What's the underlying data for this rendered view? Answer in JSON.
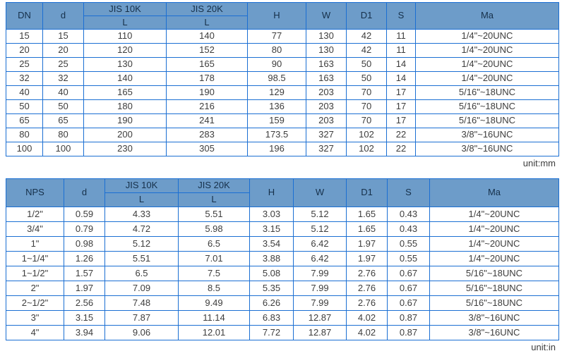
{
  "colors": {
    "header_bg": "#6d9cc9",
    "border_blue": "#1b6fd3",
    "header_text": "#16304a",
    "body_text": "#3d3d3d"
  },
  "units": {
    "mm_label": "unit:mm",
    "in_label": "unit:in"
  },
  "table_mm": {
    "headers": {
      "col_size": "DN",
      "col_d": "d",
      "col_jis10k": "JIS 10K",
      "col_jis20k": "JIS 20K",
      "col_l10": "L",
      "col_l20": "L",
      "col_h": "H",
      "col_w": "W",
      "col_d1": "D1",
      "col_s": "S",
      "col_ma": "Ma"
    },
    "rows": [
      [
        "15",
        "15",
        "110",
        "140",
        "77",
        "130",
        "42",
        "11",
        "1/4\"~20UNC"
      ],
      [
        "20",
        "20",
        "120",
        "152",
        "80",
        "130",
        "42",
        "11",
        "1/4\"~20UNC"
      ],
      [
        "25",
        "25",
        "130",
        "165",
        "90",
        "163",
        "50",
        "14",
        "1/4\"~20UNC"
      ],
      [
        "32",
        "32",
        "140",
        "178",
        "98.5",
        "163",
        "50",
        "14",
        "1/4\"~20UNC"
      ],
      [
        "40",
        "40",
        "165",
        "190",
        "129",
        "203",
        "70",
        "17",
        "5/16\"~18UNC"
      ],
      [
        "50",
        "50",
        "180",
        "216",
        "136",
        "203",
        "70",
        "17",
        "5/16\"~18UNC"
      ],
      [
        "65",
        "65",
        "190",
        "241",
        "159",
        "203",
        "70",
        "17",
        "5/16\"~18UNC"
      ],
      [
        "80",
        "80",
        "200",
        "283",
        "173.5",
        "327",
        "102",
        "22",
        "3/8\"~16UNC"
      ],
      [
        "100",
        "100",
        "230",
        "305",
        "196",
        "327",
        "102",
        "22",
        "3/8\"~16UNC"
      ]
    ]
  },
  "table_in": {
    "headers": {
      "col_size": "NPS",
      "col_d": "d",
      "col_jis10k": "JIS 10K",
      "col_jis20k": "JIS 20K",
      "col_l10": "L",
      "col_l20": "L",
      "col_h": "H",
      "col_w": "W",
      "col_d1": "D1",
      "col_s": "S",
      "col_ma": "Ma"
    },
    "rows": [
      [
        "1/2\"",
        "0.59",
        "4.33",
        "5.51",
        "3.03",
        "5.12",
        "1.65",
        "0.43",
        "1/4\"~20UNC"
      ],
      [
        "3/4\"",
        "0.79",
        "4.72",
        "5.98",
        "3.15",
        "5.12",
        "1.65",
        "0.43",
        "1/4\"~20UNC"
      ],
      [
        "1\"",
        "0.98",
        "5.12",
        "6.5",
        "3.54",
        "6.42",
        "1.97",
        "0.55",
        "1/4\"~20UNC"
      ],
      [
        "1~1/4\"",
        "1.26",
        "5.51",
        "7.01",
        "3.88",
        "6.42",
        "1.97",
        "0.55",
        "1/4\"~20UNC"
      ],
      [
        "1~1/2\"",
        "1.57",
        "6.5",
        "7.5",
        "5.08",
        "7.99",
        "2.76",
        "0.67",
        "5/16\"~18UNC"
      ],
      [
        "2\"",
        "1.97",
        "7.09",
        "8.5",
        "5.35",
        "7.99",
        "2.76",
        "0.67",
        "5/16\"~18UNC"
      ],
      [
        "2~1/2\"",
        "2.56",
        "7.48",
        "9.49",
        "6.26",
        "7.99",
        "2.76",
        "0.67",
        "5/16\"~18UNC"
      ],
      [
        "3\"",
        "3.15",
        "7.87",
        "11.14",
        "6.83",
        "12.87",
        "4.02",
        "0.87",
        "3/8\"~16UNC"
      ],
      [
        "4\"",
        "3.94",
        "9.06",
        "12.01",
        "7.72",
        "12.87",
        "4.02",
        "0.87",
        "3/8\"~16UNC"
      ]
    ]
  }
}
